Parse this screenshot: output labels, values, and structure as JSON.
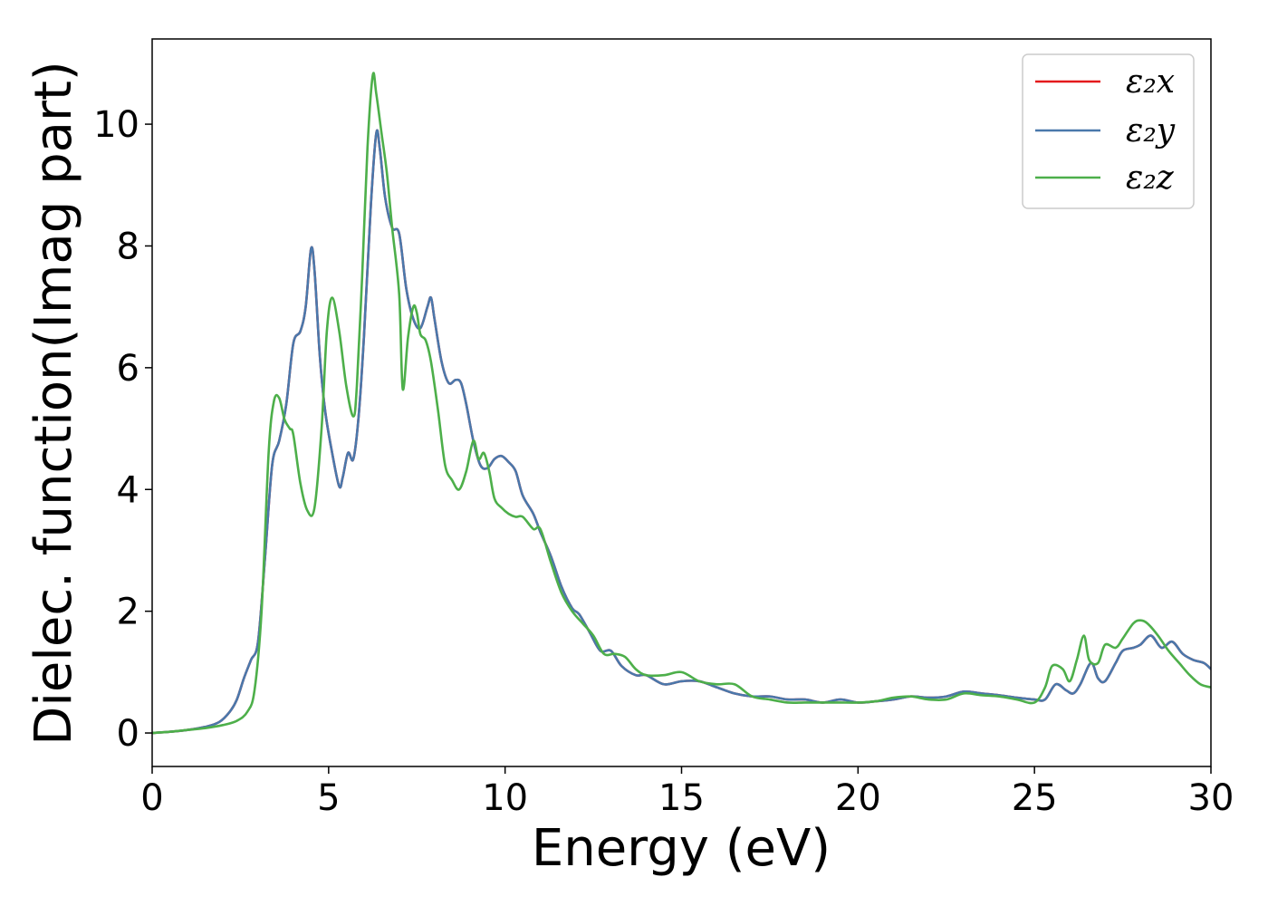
{
  "chart_data": {
    "type": "line",
    "title": "",
    "xlabel": "Energy (eV)",
    "ylabel": "Dielec. function(Imag part)",
    "xlim": [
      0,
      30
    ],
    "ylim": [
      -0.55,
      11.4
    ],
    "xticks": [
      0,
      5,
      10,
      15,
      20,
      25,
      30
    ],
    "yticks": [
      0,
      2,
      4,
      6,
      8,
      10
    ],
    "grid": false,
    "legend_position": "top-right",
    "series": [
      {
        "name": "ε₂x",
        "color": "#e41a1c",
        "x": [
          0,
          0.5,
          1,
          1.5,
          1.9,
          2.2,
          2.4,
          2.6,
          2.8,
          3.0,
          3.2,
          3.4,
          3.6,
          3.8,
          4.0,
          4.2,
          4.35,
          4.5,
          4.6,
          4.75,
          4.9,
          5.1,
          5.3,
          5.4,
          5.55,
          5.7,
          5.85,
          6.0,
          6.2,
          6.35,
          6.45,
          6.6,
          6.8,
          7.0,
          7.2,
          7.4,
          7.6,
          7.8,
          7.9,
          8.0,
          8.2,
          8.4,
          8.6,
          8.75,
          8.9,
          9.1,
          9.3,
          9.5,
          9.7,
          9.9,
          10.1,
          10.3,
          10.5,
          10.8,
          11.0,
          11.3,
          11.6,
          11.9,
          12.1,
          12.4,
          12.7,
          13.0,
          13.3,
          13.7,
          14.0,
          14.5,
          15.0,
          15.5,
          16.0,
          16.5,
          17.0,
          17.5,
          18.0,
          18.5,
          19.0,
          19.5,
          20.0,
          20.5,
          21.0,
          21.5,
          22.0,
          22.5,
          23.0,
          23.5,
          24.0,
          24.5,
          25.0,
          25.3,
          25.6,
          25.9,
          26.1,
          26.3,
          26.6,
          26.8,
          27.0,
          27.3,
          27.5,
          27.8,
          28.0,
          28.3,
          28.6,
          28.9,
          29.2,
          29.5,
          29.8,
          30.0
        ],
        "y": [
          0,
          0.02,
          0.05,
          0.1,
          0.18,
          0.35,
          0.55,
          0.9,
          1.2,
          1.5,
          2.9,
          4.4,
          4.8,
          5.4,
          6.4,
          6.6,
          7.0,
          7.95,
          7.6,
          6.2,
          5.3,
          4.6,
          4.05,
          4.2,
          4.6,
          4.5,
          5.2,
          6.5,
          8.7,
          9.85,
          9.6,
          8.8,
          8.3,
          8.2,
          7.3,
          6.8,
          6.65,
          7.0,
          7.15,
          6.8,
          6.1,
          5.75,
          5.8,
          5.75,
          5.4,
          4.8,
          4.4,
          4.35,
          4.5,
          4.55,
          4.45,
          4.3,
          3.9,
          3.6,
          3.3,
          2.9,
          2.4,
          2.05,
          1.95,
          1.65,
          1.35,
          1.35,
          1.1,
          0.95,
          0.95,
          0.8,
          0.85,
          0.85,
          0.75,
          0.65,
          0.6,
          0.6,
          0.55,
          0.55,
          0.5,
          0.55,
          0.5,
          0.52,
          0.55,
          0.6,
          0.58,
          0.6,
          0.68,
          0.65,
          0.62,
          0.58,
          0.55,
          0.55,
          0.8,
          0.7,
          0.65,
          0.8,
          1.15,
          0.9,
          0.85,
          1.15,
          1.35,
          1.4,
          1.45,
          1.6,
          1.4,
          1.5,
          1.3,
          1.2,
          1.15,
          1.05
        ]
      },
      {
        "name": "ε₂y",
        "color": "#4a78ab",
        "x": [
          0,
          0.5,
          1,
          1.5,
          1.9,
          2.2,
          2.4,
          2.6,
          2.8,
          3.0,
          3.2,
          3.4,
          3.6,
          3.8,
          4.0,
          4.2,
          4.35,
          4.5,
          4.6,
          4.75,
          4.9,
          5.1,
          5.3,
          5.4,
          5.55,
          5.7,
          5.85,
          6.0,
          6.2,
          6.35,
          6.45,
          6.6,
          6.8,
          7.0,
          7.2,
          7.4,
          7.6,
          7.8,
          7.9,
          8.0,
          8.2,
          8.4,
          8.6,
          8.75,
          8.9,
          9.1,
          9.3,
          9.5,
          9.7,
          9.9,
          10.1,
          10.3,
          10.5,
          10.8,
          11.0,
          11.3,
          11.6,
          11.9,
          12.1,
          12.4,
          12.7,
          13.0,
          13.3,
          13.7,
          14.0,
          14.5,
          15.0,
          15.5,
          16.0,
          16.5,
          17.0,
          17.5,
          18.0,
          18.5,
          19.0,
          19.5,
          20.0,
          20.5,
          21.0,
          21.5,
          22.0,
          22.5,
          23.0,
          23.5,
          24.0,
          24.5,
          25.0,
          25.3,
          25.6,
          25.9,
          26.1,
          26.3,
          26.6,
          26.8,
          27.0,
          27.3,
          27.5,
          27.8,
          28.0,
          28.3,
          28.6,
          28.9,
          29.2,
          29.5,
          29.8,
          30.0
        ],
        "y": [
          0,
          0.02,
          0.05,
          0.1,
          0.18,
          0.35,
          0.55,
          0.9,
          1.2,
          1.5,
          2.9,
          4.4,
          4.8,
          5.4,
          6.4,
          6.6,
          7.0,
          7.95,
          7.6,
          6.2,
          5.3,
          4.6,
          4.05,
          4.2,
          4.6,
          4.5,
          5.2,
          6.5,
          8.7,
          9.85,
          9.6,
          8.8,
          8.3,
          8.2,
          7.3,
          6.8,
          6.65,
          7.0,
          7.15,
          6.8,
          6.1,
          5.75,
          5.8,
          5.75,
          5.4,
          4.8,
          4.4,
          4.35,
          4.5,
          4.55,
          4.45,
          4.3,
          3.9,
          3.6,
          3.3,
          2.9,
          2.4,
          2.05,
          1.95,
          1.65,
          1.35,
          1.35,
          1.1,
          0.95,
          0.95,
          0.8,
          0.85,
          0.85,
          0.75,
          0.65,
          0.6,
          0.6,
          0.55,
          0.55,
          0.5,
          0.55,
          0.5,
          0.52,
          0.55,
          0.6,
          0.58,
          0.6,
          0.68,
          0.65,
          0.62,
          0.58,
          0.55,
          0.55,
          0.8,
          0.7,
          0.65,
          0.8,
          1.15,
          0.9,
          0.85,
          1.15,
          1.35,
          1.4,
          1.45,
          1.6,
          1.4,
          1.5,
          1.3,
          1.2,
          1.15,
          1.05
        ]
      },
      {
        "name": "ε₂z",
        "color": "#4daf4a",
        "x": [
          0,
          0.5,
          1,
          1.5,
          2.0,
          2.4,
          2.7,
          2.9,
          3.1,
          3.3,
          3.45,
          3.6,
          3.75,
          3.9,
          4.0,
          4.2,
          4.4,
          4.6,
          4.8,
          4.95,
          5.1,
          5.3,
          5.5,
          5.7,
          5.8,
          5.95,
          6.1,
          6.25,
          6.35,
          6.5,
          6.65,
          6.8,
          7.0,
          7.1,
          7.25,
          7.4,
          7.5,
          7.6,
          7.75,
          7.9,
          8.1,
          8.3,
          8.5,
          8.7,
          8.9,
          9.1,
          9.25,
          9.4,
          9.55,
          9.7,
          9.9,
          10.1,
          10.3,
          10.5,
          10.8,
          11.0,
          11.3,
          11.6,
          11.9,
          12.2,
          12.5,
          12.8,
          13.1,
          13.4,
          13.7,
          14.0,
          14.5,
          15.0,
          15.5,
          16.0,
          16.5,
          17.0,
          17.5,
          18.0,
          18.5,
          19.0,
          19.5,
          20.0,
          20.5,
          21.0,
          21.5,
          22.0,
          22.5,
          23.0,
          23.5,
          24.0,
          24.5,
          25.0,
          25.3,
          25.5,
          25.8,
          26.0,
          26.2,
          26.4,
          26.55,
          26.8,
          27.0,
          27.3,
          27.5,
          27.8,
          28.0,
          28.2,
          28.5,
          28.8,
          29.1,
          29.4,
          29.7,
          30.0
        ],
        "y": [
          0,
          0.02,
          0.05,
          0.08,
          0.13,
          0.2,
          0.35,
          0.7,
          2.0,
          4.6,
          5.45,
          5.5,
          5.15,
          5.0,
          4.9,
          4.1,
          3.65,
          3.7,
          5.0,
          6.6,
          7.15,
          6.6,
          5.7,
          5.2,
          5.7,
          7.5,
          9.6,
          10.8,
          10.5,
          9.85,
          9.2,
          8.3,
          7.2,
          5.65,
          6.5,
          7.0,
          6.9,
          6.55,
          6.45,
          6.1,
          5.3,
          4.4,
          4.15,
          4.0,
          4.3,
          4.8,
          4.5,
          4.6,
          4.3,
          3.85,
          3.7,
          3.6,
          3.55,
          3.55,
          3.35,
          3.35,
          2.8,
          2.3,
          2.0,
          1.8,
          1.6,
          1.3,
          1.3,
          1.25,
          1.05,
          0.95,
          0.95,
          1.0,
          0.85,
          0.8,
          0.8,
          0.6,
          0.55,
          0.5,
          0.5,
          0.5,
          0.5,
          0.5,
          0.52,
          0.58,
          0.6,
          0.55,
          0.55,
          0.65,
          0.62,
          0.6,
          0.55,
          0.5,
          0.75,
          1.1,
          1.05,
          0.85,
          1.2,
          1.6,
          1.2,
          1.15,
          1.45,
          1.4,
          1.55,
          1.8,
          1.85,
          1.8,
          1.6,
          1.35,
          1.15,
          0.95,
          0.8,
          0.75
        ]
      }
    ]
  }
}
